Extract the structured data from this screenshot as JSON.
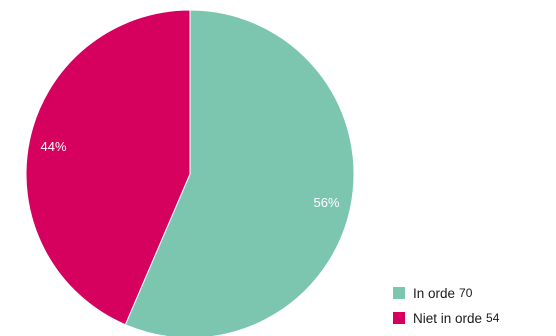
{
  "chart_data": {
    "type": "pie",
    "slices": [
      {
        "label": "In orde",
        "value": 70,
        "percent_label": "56%",
        "color": "#7cc6b0"
      },
      {
        "label": "Niet in orde",
        "value": 54,
        "percent_label": "44%",
        "color": "#d6005f"
      }
    ],
    "legend_position": "bottom-right"
  }
}
